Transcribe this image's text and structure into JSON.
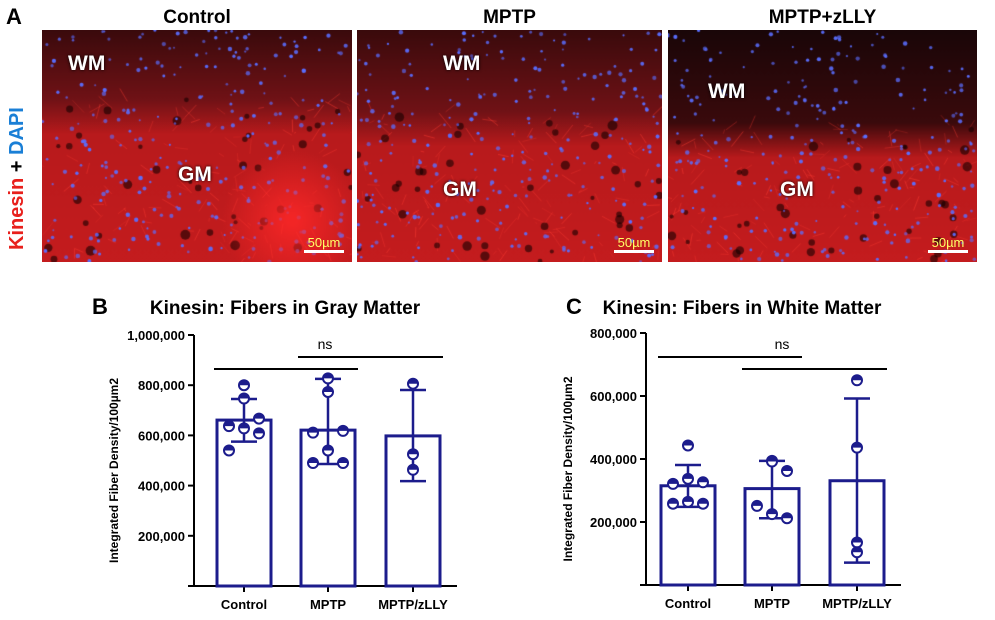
{
  "panel_a": {
    "letter": "A",
    "stain_label": {
      "part1": "Kinesin",
      "plus": " + ",
      "part2": "DAPI"
    },
    "colors": {
      "kinesin": "#e8201c",
      "dapi": "#1a7fd6"
    },
    "images": [
      {
        "title": "Control",
        "wm": "WM",
        "gm": "GM",
        "scale": "50µm"
      },
      {
        "title": "MPTP",
        "wm": "WM",
        "gm": "GM",
        "scale": "50µm"
      },
      {
        "title": "MPTP+zLLY",
        "wm": "WM",
        "gm": "GM",
        "scale": "50µm"
      }
    ]
  },
  "chart_data": [
    {
      "letter": "B",
      "type": "bar",
      "title": "Kinesin: Fibers in Gray Matter",
      "ylabel": "Integrated Fiber Density/100µm2",
      "categories": [
        "Control",
        "MPTP",
        "MPTP/zLLY"
      ],
      "ylim": [
        0,
        1000000
      ],
      "yticks": [
        200000,
        400000,
        600000,
        800000,
        1000000
      ],
      "ytick_labels": [
        "200,000",
        "400,000",
        "600,000",
        "800,000",
        "1,000,000"
      ],
      "bar_color": "#1c1c8c",
      "values": [
        661000,
        621000,
        598000
      ],
      "error_upper": [
        745000,
        825000,
        781000
      ],
      "error_lower": [
        575000,
        486000,
        418000
      ],
      "points": [
        [
          800000,
          747000,
          667000,
          637000,
          628000,
          608000,
          540000
        ],
        [
          827000,
          773000,
          618000,
          611000,
          540000,
          490000,
          490000
        ],
        [
          806000,
          525000,
          463000
        ]
      ],
      "significance": [
        {
          "from": "Control",
          "to": "MPTP",
          "label": "",
          "level": 1
        },
        {
          "from": "MPTP",
          "to": "MPTP/zLLY",
          "label": "ns",
          "level": 2
        }
      ]
    },
    {
      "letter": "C",
      "type": "bar",
      "title": "Kinesin: Fibers in White Matter",
      "ylabel": "Integrated Fiber Density/100µm2",
      "categories": [
        "Control",
        "MPTP",
        "MPTP/zLLY"
      ],
      "ylim": [
        0,
        800000
      ],
      "yticks": [
        200000,
        400000,
        600000,
        800000
      ],
      "ytick_labels": [
        "200,000",
        "400,000",
        "600,000",
        "800,000"
      ],
      "bar_color": "#1c1c8c",
      "values": [
        315000,
        306000,
        331000
      ],
      "error_upper": [
        381000,
        394000,
        592000
      ],
      "error_lower": [
        248000,
        212000,
        71000
      ],
      "points": [
        [
          443000,
          337000,
          326000,
          321000,
          264000,
          258000,
          258000
        ],
        [
          394000,
          392000,
          362000,
          251000,
          225000,
          212000
        ],
        [
          650000,
          436000,
          135000,
          104000
        ]
      ],
      "significance": [
        {
          "from": "Control",
          "to": "MPTP",
          "label": "ns",
          "level": 2
        },
        {
          "from": "MPTP",
          "to": "MPTP/zLLY",
          "label": "",
          "level": 1
        }
      ]
    }
  ]
}
